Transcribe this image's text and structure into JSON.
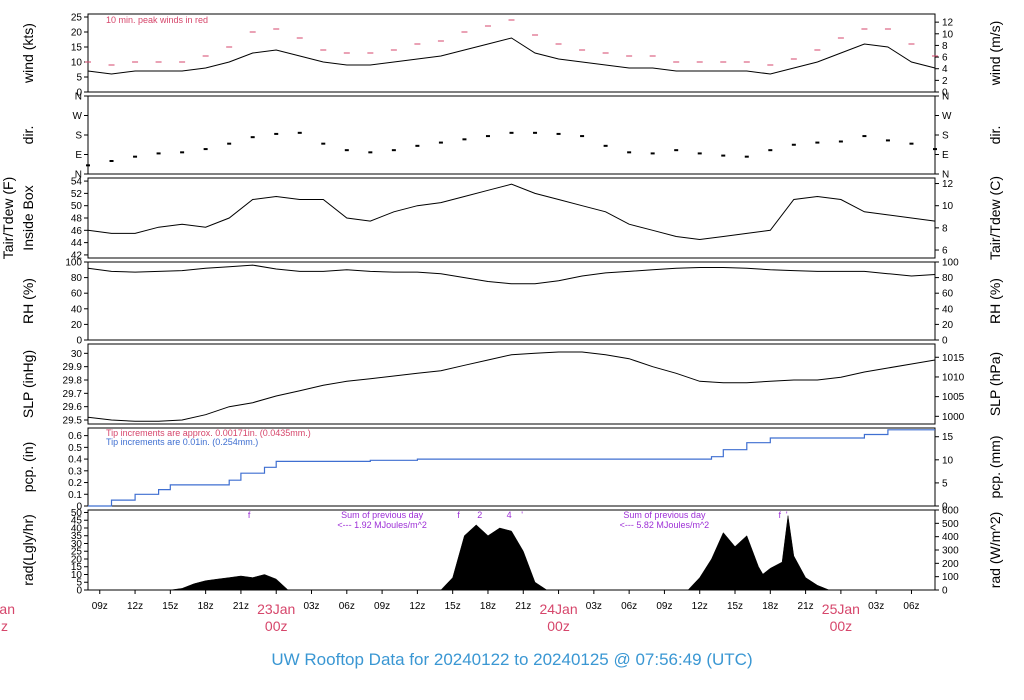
{
  "footer_title": "UW Rooftop Data for 20240122  to  20240125 @ 07:56:49  (UTC)",
  "colors": {
    "footer": "#3a97d3",
    "red": "#d6466b",
    "blue": "#3f6fd1",
    "purple": "#9d2fd6",
    "black": "#000000"
  },
  "time": {
    "start_hour": -16,
    "end_hour": 56,
    "unit": "hours relative to 23Jan 00z"
  },
  "x_ticks": [
    "09z",
    "12z",
    "15z",
    "18z",
    "21z",
    "23Jan",
    "03z",
    "06z",
    "09z",
    "12z",
    "15z",
    "18z",
    "21z",
    "24Jan",
    "03z",
    "06z",
    "09z",
    "12z",
    "15z",
    "18z",
    "21z",
    "25Jan",
    "03z",
    "06z"
  ],
  "x_tick_hours": [
    -15,
    -12,
    -9,
    -6,
    -3,
    0,
    3,
    6,
    9,
    12,
    15,
    18,
    21,
    24,
    27,
    30,
    33,
    36,
    39,
    42,
    45,
    48,
    51,
    54
  ],
  "day_labels": [
    {
      "date": "23Jan",
      "time": "00z",
      "hour": 0
    },
    {
      "date": "24Jan",
      "time": "00z",
      "hour": 24
    },
    {
      "date": "25Jan",
      "time": "00z",
      "hour": 48
    }
  ],
  "clipped_day_label": {
    "date": "Jan",
    "time": "z"
  },
  "chart_data": [
    {
      "type": "line",
      "id": "wind",
      "ylabel": "wind (kts)",
      "ylabel_right": "wind (m/s)",
      "ylim": [
        0,
        26
      ],
      "yticks": [
        0,
        5,
        10,
        15,
        20,
        25
      ],
      "ylim_right": [
        0,
        13.4
      ],
      "yticks_right": [
        0,
        2,
        4,
        6,
        8,
        10,
        12
      ],
      "annotation": "10 min. peak winds in red",
      "series": [
        {
          "style": "line",
          "color": "#000000",
          "x": [
            -16,
            -14,
            -12,
            -10,
            -8,
            -6,
            -4,
            -2,
            0,
            2,
            4,
            6,
            8,
            10,
            12,
            14,
            16,
            18,
            20,
            22,
            24,
            26,
            28,
            30,
            32,
            34,
            36,
            38,
            40,
            42,
            44,
            46,
            48,
            50,
            52,
            54,
            56
          ],
          "y": [
            7,
            6,
            7,
            7,
            7,
            8,
            10,
            13,
            14,
            12,
            10,
            9,
            9,
            10,
            11,
            12,
            14,
            16,
            18,
            13,
            11,
            10,
            9,
            8,
            8,
            7,
            7,
            7,
            7,
            6,
            8,
            10,
            13,
            16,
            15,
            10,
            8
          ]
        },
        {
          "style": "dash",
          "color": "#d6466b",
          "x": [
            -16,
            -14,
            -12,
            -10,
            -8,
            -6,
            -4,
            -2,
            0,
            2,
            4,
            6,
            8,
            10,
            12,
            14,
            16,
            18,
            20,
            22,
            24,
            26,
            28,
            30,
            32,
            34,
            36,
            38,
            40,
            42,
            44,
            46,
            48,
            50,
            52,
            54,
            56
          ],
          "y": [
            10,
            9,
            10,
            10,
            10,
            12,
            15,
            20,
            21,
            18,
            14,
            13,
            13,
            14,
            16,
            17,
            20,
            22,
            24,
            19,
            16,
            14,
            13,
            12,
            12,
            10,
            10,
            10,
            10,
            9,
            11,
            14,
            18,
            21,
            21,
            16,
            12
          ]
        }
      ]
    },
    {
      "type": "scatter",
      "id": "dir",
      "ylabel": "dir.",
      "ylabel_right": "dir.",
      "ylim": [
        0,
        360
      ],
      "ytick_values": [
        0,
        90,
        180,
        270,
        360
      ],
      "ytick_labels": [
        "N",
        "E",
        "S",
        "W",
        "N"
      ],
      "series": [
        {
          "style": "dots",
          "color": "#000000",
          "x": [
            -16,
            -14,
            -12,
            -10,
            -8,
            -6,
            -4,
            -2,
            0,
            2,
            4,
            6,
            8,
            10,
            12,
            14,
            16,
            18,
            20,
            22,
            24,
            26,
            28,
            30,
            32,
            34,
            36,
            38,
            40,
            42,
            44,
            46,
            48,
            50,
            52,
            54,
            56
          ],
          "y": [
            40,
            60,
            80,
            95,
            100,
            115,
            140,
            170,
            185,
            190,
            140,
            110,
            100,
            110,
            130,
            145,
            160,
            175,
            190,
            190,
            185,
            175,
            130,
            100,
            95,
            110,
            95,
            85,
            80,
            110,
            135,
            145,
            150,
            175,
            155,
            140,
            115
          ]
        }
      ]
    },
    {
      "type": "line",
      "id": "temp",
      "ylabel": "Tair/Tdew (F)",
      "ylabel2": "Inside Box",
      "ylabel_right": "Tair/Tdew (C)",
      "ylim": [
        41.5,
        54.5
      ],
      "yticks": [
        42,
        44,
        46,
        48,
        50,
        52,
        54
      ],
      "ylim_right": [
        5.28,
        12.5
      ],
      "yticks_right": [
        6,
        8,
        10,
        12
      ],
      "series": [
        {
          "style": "line",
          "color": "#000000",
          "x": [
            -16,
            -14,
            -12,
            -10,
            -8,
            -6,
            -4,
            -2,
            0,
            2,
            4,
            6,
            8,
            10,
            12,
            14,
            16,
            18,
            20,
            22,
            24,
            26,
            28,
            30,
            32,
            34,
            36,
            38,
            40,
            42,
            44,
            46,
            48,
            50,
            52,
            54,
            56
          ],
          "y": [
            46,
            45.5,
            45.5,
            46.5,
            47,
            46.5,
            48,
            51,
            51.5,
            51,
            51,
            48,
            47.5,
            49,
            50,
            50.5,
            51.5,
            52.5,
            53.5,
            52,
            51,
            50,
            49,
            47,
            46,
            45,
            44.5,
            45,
            45.5,
            46,
            51,
            51.5,
            51,
            49,
            48.5,
            48,
            47.5
          ]
        }
      ]
    },
    {
      "type": "line",
      "id": "rh",
      "ylabel": "RH (%)",
      "ylabel_right": "RH (%)",
      "ylim": [
        0,
        100
      ],
      "yticks": [
        0,
        20,
        40,
        60,
        80,
        100
      ],
      "yticks_right": [
        0,
        20,
        40,
        60,
        80,
        100
      ],
      "series": [
        {
          "style": "line",
          "color": "#000000",
          "x": [
            -16,
            -14,
            -12,
            -10,
            -8,
            -6,
            -4,
            -2,
            0,
            2,
            4,
            6,
            8,
            10,
            12,
            14,
            16,
            18,
            20,
            22,
            24,
            26,
            28,
            30,
            32,
            34,
            36,
            38,
            40,
            42,
            44,
            46,
            48,
            50,
            52,
            54,
            56
          ],
          "y": [
            92,
            88,
            87,
            88,
            89,
            92,
            94,
            96,
            91,
            88,
            88,
            90,
            88,
            87,
            87,
            85,
            80,
            75,
            72,
            72,
            76,
            82,
            86,
            88,
            90,
            92,
            93,
            93,
            92,
            90,
            89,
            88,
            88,
            88,
            85,
            82,
            84
          ]
        }
      ]
    },
    {
      "type": "line",
      "id": "slp",
      "ylabel": "SLP (inHg)",
      "ylabel_right": "SLP (hPa)",
      "ylim": [
        29.47,
        30.07
      ],
      "yticks": [
        29.5,
        29.6,
        29.7,
        29.8,
        29.9,
        30.0
      ],
      "ylim_right": [
        998.05,
        1018.37
      ],
      "yticks_right": [
        1000,
        1005,
        1010,
        1015
      ],
      "series": [
        {
          "style": "line",
          "color": "#000000",
          "x": [
            -16,
            -14,
            -12,
            -10,
            -8,
            -6,
            -4,
            -2,
            0,
            2,
            4,
            6,
            8,
            10,
            12,
            14,
            16,
            18,
            20,
            22,
            24,
            26,
            28,
            30,
            32,
            34,
            36,
            38,
            40,
            42,
            44,
            46,
            48,
            50,
            52,
            54,
            56
          ],
          "y": [
            29.52,
            29.5,
            29.49,
            29.49,
            29.5,
            29.54,
            29.6,
            29.63,
            29.68,
            29.72,
            29.76,
            29.79,
            29.81,
            29.83,
            29.85,
            29.87,
            29.91,
            29.95,
            29.99,
            30.0,
            30.01,
            30.01,
            29.99,
            29.96,
            29.9,
            29.85,
            29.79,
            29.78,
            29.78,
            29.79,
            29.8,
            29.8,
            29.82,
            29.86,
            29.89,
            29.92,
            29.95
          ]
        }
      ]
    },
    {
      "type": "line",
      "id": "pcp",
      "ylabel": "pcp. (in)",
      "ylabel_right": "pcp. (mm)",
      "ylim": [
        0,
        0.665
      ],
      "yticks": [
        0,
        0.1,
        0.2,
        0.3,
        0.4,
        0.5,
        0.6
      ],
      "ylim_right": [
        0,
        16.89
      ],
      "yticks_right": [
        0,
        5,
        10,
        15
      ],
      "annotation_1": "Tip increments are approx. 0.00171in. (0.0435mm.)",
      "annotation_2": "Tip increments are 0.01in. (0.254mm.)",
      "series": [
        {
          "style": "step",
          "color": "#3f6fd1",
          "x": [
            -16,
            -14,
            -12,
            -10,
            -9,
            -6,
            -4,
            -3,
            -1,
            0,
            2,
            4,
            6,
            8,
            10,
            12,
            14,
            16,
            18,
            20,
            22,
            24,
            26,
            28,
            30,
            32,
            34,
            36,
            37,
            38,
            40,
            42,
            44,
            46,
            48,
            50,
            52,
            54,
            56
          ],
          "y": [
            0,
            0.05,
            0.1,
            0.14,
            0.18,
            0.18,
            0.22,
            0.28,
            0.33,
            0.38,
            0.38,
            0.38,
            0.38,
            0.39,
            0.39,
            0.4,
            0.4,
            0.4,
            0.4,
            0.4,
            0.4,
            0.4,
            0.4,
            0.4,
            0.4,
            0.4,
            0.4,
            0.4,
            0.42,
            0.48,
            0.54,
            0.58,
            0.58,
            0.58,
            0.58,
            0.61,
            0.65,
            0.65,
            0.65
          ]
        }
      ]
    },
    {
      "type": "area",
      "id": "rad",
      "ylabel": "rad(Lgly/hr)",
      "ylabel_right": "rad (W/m^2)",
      "ylim": [
        0,
        51.6
      ],
      "yticks": [
        0,
        5,
        10,
        15,
        20,
        25,
        30,
        35,
        40,
        45,
        50
      ],
      "ylim_right": [
        0,
        600
      ],
      "yticks_right": [
        0,
        100,
        200,
        300,
        400,
        500,
        600
      ],
      "day_sums": [
        {
          "line1": "Sum of previous day",
          "line2": "<--- 1.92 MJoules/m^2",
          "hour": 9
        },
        {
          "line1": "Sum of previous day",
          "line2": "<--- 5.82 MJoules/m^2",
          "hour": 33
        }
      ],
      "top_marks": [
        {
          "hour": -2.3,
          "text": "f"
        },
        {
          "hour": 15.5,
          "text": "f"
        },
        {
          "hour": 17.3,
          "text": "2"
        },
        {
          "hour": 19.8,
          "text": "4"
        },
        {
          "hour": 20.9,
          "text": "'"
        },
        {
          "hour": 42.8,
          "text": "f"
        },
        {
          "hour": 43.4,
          "text": "'"
        }
      ],
      "series": [
        {
          "style": "fill",
          "color": "#000000",
          "x": [
            -9,
            -8,
            -7,
            -6,
            -5,
            -4,
            -3,
            -2,
            -1,
            0,
            1,
            32,
            35,
            36,
            37,
            38,
            39,
            40,
            41,
            42,
            43,
            44,
            45,
            46,
            47
          ],
          "y": [
            0,
            1,
            4,
            6,
            7,
            8,
            9,
            8,
            10,
            7,
            0,
            0,
            0,
            8,
            20,
            37,
            28,
            35,
            15,
            2,
            0,
            0,
            0,
            0,
            0
          ]
        },
        {
          "style": "fill",
          "color": "#000000",
          "x": [
            14,
            15,
            16,
            17,
            18,
            19,
            20,
            21,
            22,
            23
          ],
          "y": [
            0,
            8,
            35,
            42,
            35,
            40,
            38,
            25,
            5,
            0
          ]
        },
        {
          "style": "fill",
          "color": "#000000",
          "x": [
            39,
            40,
            41,
            42,
            43,
            43.5,
            44,
            45,
            46,
            47
          ],
          "y": [
            0,
            4,
            8,
            14,
            18,
            48,
            22,
            8,
            3,
            0
          ]
        }
      ]
    }
  ]
}
